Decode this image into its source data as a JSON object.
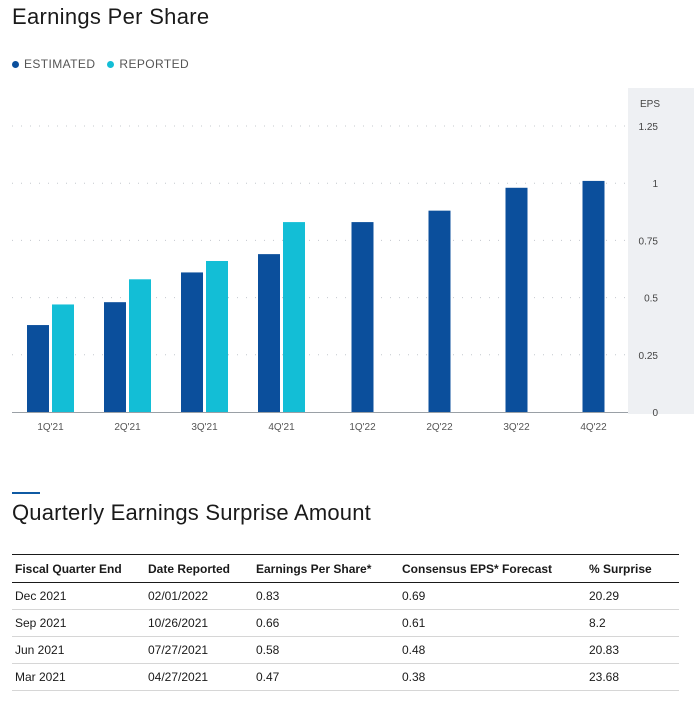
{
  "page": {
    "title": "Earnings Per Share",
    "section_title": "Quarterly Earnings Surprise Amount"
  },
  "legend": {
    "estimated": "ESTIMATED",
    "reported": "REPORTED"
  },
  "colors": {
    "estimated": "#0b4f9c",
    "reported": "#13bed6",
    "axis_panel": "#eef0f3"
  },
  "chart_data": {
    "type": "bar",
    "ylabel": "EPS",
    "ylim": [
      0,
      1.25
    ],
    "yticks": [
      "1.25",
      "1",
      "0.75",
      "0.5",
      "0.25",
      "0"
    ],
    "ytick_values": [
      1.25,
      1,
      0.75,
      0.5,
      0.25,
      0
    ],
    "categories": [
      "1Q'21",
      "2Q'21",
      "3Q'21",
      "4Q'21",
      "1Q'22",
      "2Q'22",
      "3Q'22",
      "4Q'22"
    ],
    "series": [
      {
        "name": "ESTIMATED",
        "values": [
          0.38,
          0.48,
          0.61,
          0.69,
          0.83,
          0.88,
          0.98,
          1.01
        ]
      },
      {
        "name": "REPORTED",
        "values": [
          0.47,
          0.58,
          0.66,
          0.83,
          null,
          null,
          null,
          null
        ]
      }
    ],
    "grid": true,
    "legend_position": "top-left"
  },
  "table": {
    "headers": [
      "Fiscal Quarter End",
      "Date Reported",
      "Earnings Per Share*",
      "Consensus EPS* Forecast",
      "% Surprise"
    ],
    "rows": [
      [
        "Dec 2021",
        "02/01/2022",
        "0.83",
        "0.69",
        "20.29"
      ],
      [
        "Sep 2021",
        "10/26/2021",
        "0.66",
        "0.61",
        "8.2"
      ],
      [
        "Jun 2021",
        "07/27/2021",
        "0.58",
        "0.48",
        "20.83"
      ],
      [
        "Mar 2021",
        "04/27/2021",
        "0.47",
        "0.38",
        "23.68"
      ]
    ]
  }
}
